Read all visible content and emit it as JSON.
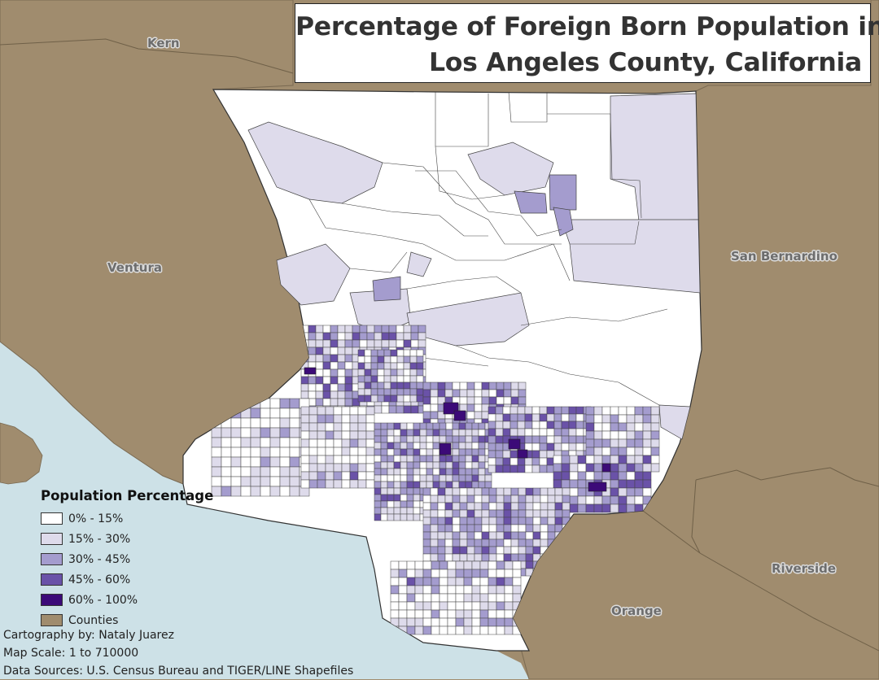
{
  "title": {
    "line1": "Percentage of Foreign Born Population in",
    "line2": "Los Angeles County, California"
  },
  "neighbor_counties": [
    {
      "name": "Kern"
    },
    {
      "name": "Ventura"
    },
    {
      "name": "San Bernardino"
    },
    {
      "name": "Riverside"
    },
    {
      "name": "Orange"
    }
  ],
  "legend": {
    "title": "Population Percentage",
    "items": [
      {
        "label": "0% - 15%",
        "color": "#ffffff"
      },
      {
        "label": "15% - 30%",
        "color": "#dedbeb"
      },
      {
        "label": "30% - 45%",
        "color": "#a49cce"
      },
      {
        "label": "45% - 60%",
        "color": "#6a52a8"
      },
      {
        "label": "60% - 100%",
        "color": "#3c0a78"
      },
      {
        "label": "Counties",
        "color": "#a08c6e"
      }
    ]
  },
  "credits": {
    "cartography": "Cartography by: Nataly Juarez",
    "scale": "Map Scale: 1 to 710000",
    "sources": "Data Sources: U.S. Census Bureau and TIGER/LINE Shapefiles"
  },
  "colors": {
    "water": "#cde1e7",
    "county": "#a08c6e",
    "tract_border": "#444444"
  }
}
